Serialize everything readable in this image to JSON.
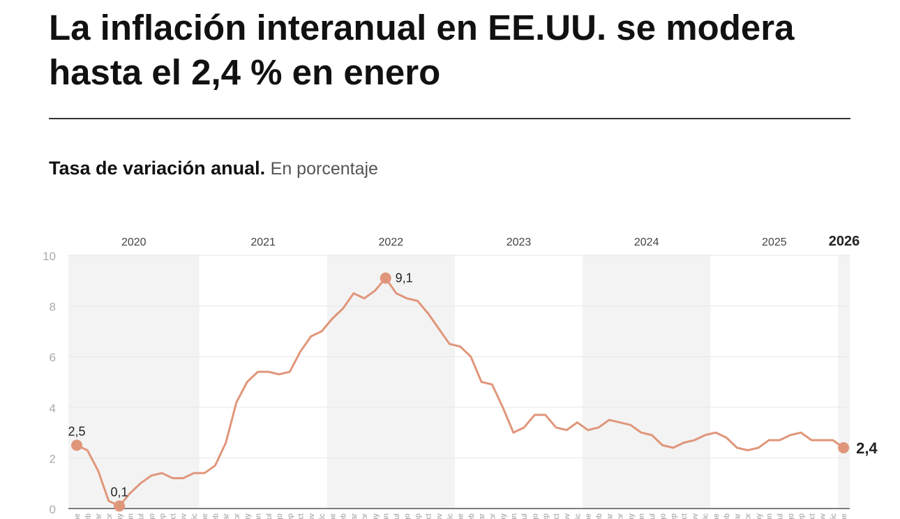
{
  "title": "La inflación interanual en EE.UU. se modera hasta el 2,4 % en enero",
  "subtitle_bold": "Tasa de variación anual.",
  "subtitle_light": "En porcentaje",
  "colors": {
    "line": "#e0967a",
    "band": "#f3f3f3"
  },
  "chart_data": {
    "type": "line",
    "title": "Tasa de variación anual. En porcentaje",
    "ylim": [
      0,
      10
    ],
    "yticks": [
      "0",
      "2",
      "4",
      "6",
      "8",
      "10"
    ],
    "years": [
      "2020",
      "2021",
      "2022",
      "2023",
      "2024",
      "2025",
      "2026"
    ],
    "months": [
      "ene",
      "feb",
      "mar",
      "abr",
      "may",
      "jun",
      "jul",
      "ago",
      "sep",
      "oct",
      "nov",
      "dic"
    ],
    "values": [
      2.5,
      2.3,
      1.5,
      0.3,
      0.1,
      0.6,
      1.0,
      1.3,
      1.4,
      1.2,
      1.2,
      1.4,
      1.4,
      1.7,
      2.6,
      4.2,
      5.0,
      5.4,
      5.4,
      5.3,
      5.4,
      6.2,
      6.8,
      7.0,
      7.5,
      7.9,
      8.5,
      8.3,
      8.6,
      9.1,
      8.5,
      8.3,
      8.2,
      7.7,
      7.1,
      6.5,
      6.4,
      6.0,
      5.0,
      4.9,
      4.0,
      3.0,
      3.2,
      3.7,
      3.7,
      3.2,
      3.1,
      3.4,
      3.1,
      3.2,
      3.5,
      3.4,
      3.3,
      3.0,
      2.9,
      2.5,
      2.4,
      2.6,
      2.7,
      2.9,
      3.0,
      2.8,
      2.4,
      2.3,
      2.4,
      2.7,
      2.7,
      2.9,
      3.0,
      2.7,
      2.7,
      2.7,
      2.4
    ],
    "annotations": [
      {
        "index": 0,
        "label": "2,5"
      },
      {
        "index": 4,
        "label": "0,1"
      },
      {
        "index": 29,
        "label": "9,1"
      },
      {
        "index": 72,
        "label": "2,4"
      }
    ]
  }
}
